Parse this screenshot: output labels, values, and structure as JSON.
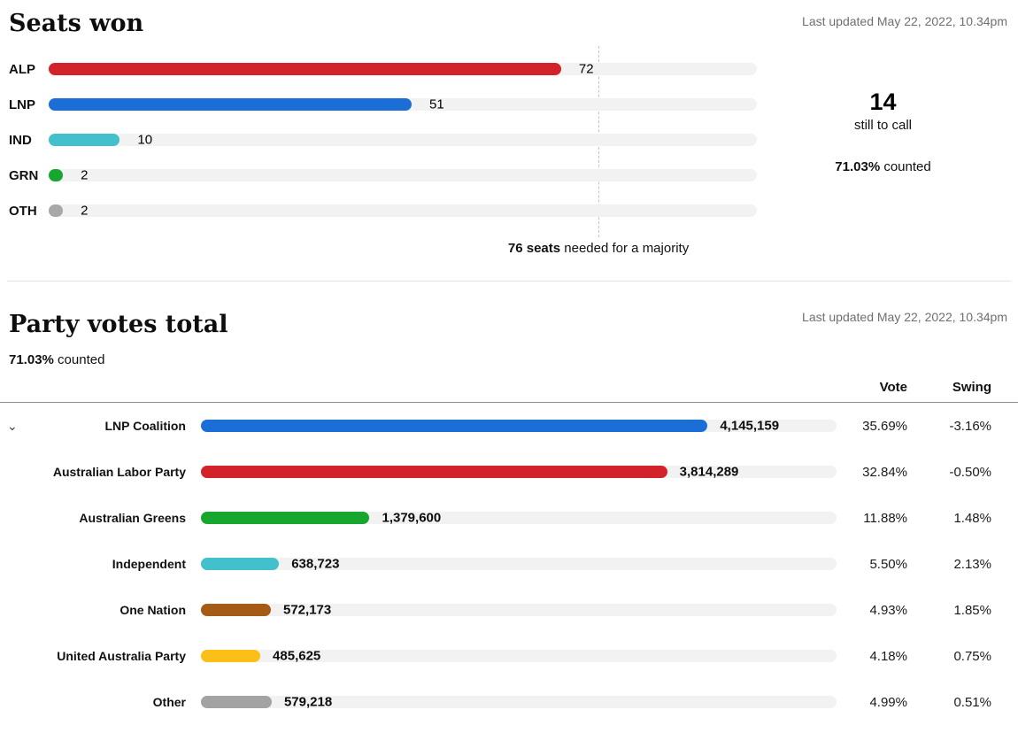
{
  "ui": {
    "last_updated": "Last updated May 22, 2022, 10.34pm",
    "still_to_call_value": "14",
    "still_to_call_label": "still to call",
    "counted_pct": "71.03%",
    "counted_suffix": " counted",
    "vote_col": "Vote",
    "swing_col": "Swing",
    "chevron_glyph": "⌄"
  },
  "chart_data": [
    {
      "type": "bar",
      "title": "Seats won",
      "categories": [
        "ALP",
        "LNP",
        "IND",
        "GRN",
        "OTH"
      ],
      "values": [
        72,
        51,
        10,
        2,
        2
      ],
      "colors": [
        "#d2232a",
        "#1b6ed6",
        "#42c0cc",
        "#17a62e",
        "#a8a8a8"
      ],
      "xmax": 99.5,
      "majority_value": 76,
      "majority_note": {
        "bold": "76 seats",
        "rest": " needed for a majority"
      },
      "track_color": "#f2f2f2"
    },
    {
      "type": "bar",
      "title": "Party votes total",
      "xmax": 5200000,
      "track_color": "#f2f2f2",
      "rows": [
        {
          "party": "LNP Coalition",
          "votes": 4145159,
          "votes_label": "4,145,159",
          "vote_pct": "35.69%",
          "swing": "-3.16%",
          "color": "#1b6ed6",
          "expandable": true
        },
        {
          "party": "Australian Labor Party",
          "votes": 3814289,
          "votes_label": "3,814,289",
          "vote_pct": "32.84%",
          "swing": "-0.50%",
          "color": "#d2232a",
          "expandable": false
        },
        {
          "party": "Australian Greens",
          "votes": 1379600,
          "votes_label": "1,379,600",
          "vote_pct": "11.88%",
          "swing": "1.48%",
          "color": "#17a62e",
          "expandable": false
        },
        {
          "party": "Independent",
          "votes": 638723,
          "votes_label": "638,723",
          "vote_pct": "5.50%",
          "swing": "2.13%",
          "color": "#42c0cc",
          "expandable": false
        },
        {
          "party": "One Nation",
          "votes": 572173,
          "votes_label": "572,173",
          "vote_pct": "4.93%",
          "swing": "1.85%",
          "color": "#a55a16",
          "expandable": false
        },
        {
          "party": "United Australia Party",
          "votes": 485625,
          "votes_label": "485,625",
          "vote_pct": "4.18%",
          "swing": "0.75%",
          "color": "#fcbf17",
          "expandable": false
        },
        {
          "party": "Other",
          "votes": 579218,
          "votes_label": "579,218",
          "vote_pct": "4.99%",
          "swing": "0.51%",
          "color": "#a3a3a3",
          "expandable": false
        }
      ]
    }
  ]
}
